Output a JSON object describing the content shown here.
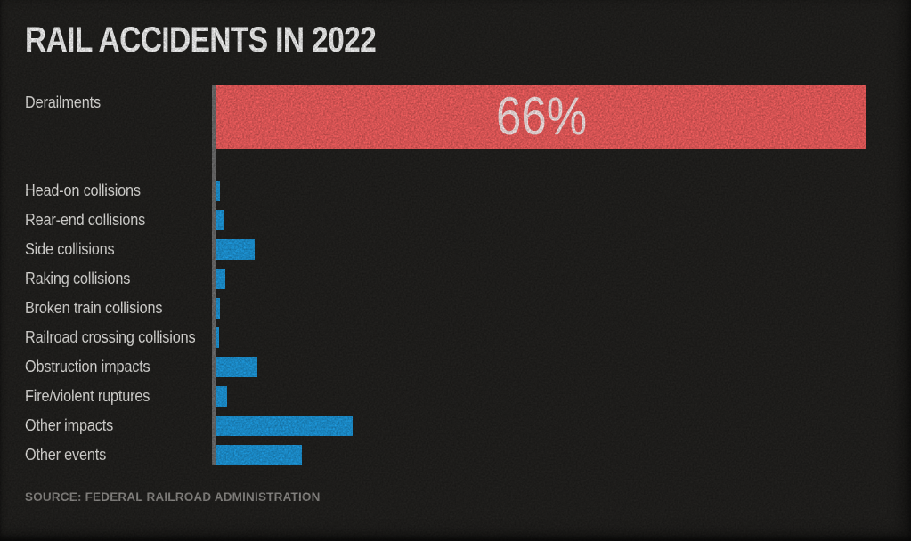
{
  "header": {
    "title": "RAIL ACCIDENTS IN 2022"
  },
  "chart_data": {
    "type": "bar",
    "orientation": "horizontal",
    "title": "RAIL ACCIDENTS IN 2022",
    "xlabel": "",
    "ylabel": "",
    "unit": "percent",
    "categories": [
      "Derailments",
      "Head-on collisions",
      "Rear-end collisions",
      "Side collisions",
      "Raking collisions",
      "Broken train collisions",
      "Railroad crossing collisions",
      "Obstruction impacts",
      "Fire/violent ruptures",
      "Other impacts",
      "Other events"
    ],
    "values": [
      66,
      0.4,
      0.7,
      3.9,
      0.9,
      0.4,
      0.3,
      4.2,
      1.1,
      13.8,
      8.7
    ],
    "value_labels": [
      "66%",
      "",
      "",
      "",
      "",
      "",
      "",
      "",
      "",
      "",
      ""
    ],
    "highlight_index": 0,
    "xlim": [
      0,
      66
    ],
    "grid": false,
    "legend": null,
    "axis": {
      "ticks": false,
      "baseline_visible": true
    },
    "colors": {
      "highlight_bar": "#f66060",
      "bar": "#1e9be0",
      "axis_line": "#6f6f6f",
      "title_text": "#fafafa",
      "label_text": "#e8e7e4",
      "value_label_text": "#fdecec",
      "source_text": "#8f8d8a",
      "background": "#22211f"
    }
  },
  "footer": {
    "source": "SOURCE: FEDERAL RAILROAD ADMINISTRATION"
  }
}
